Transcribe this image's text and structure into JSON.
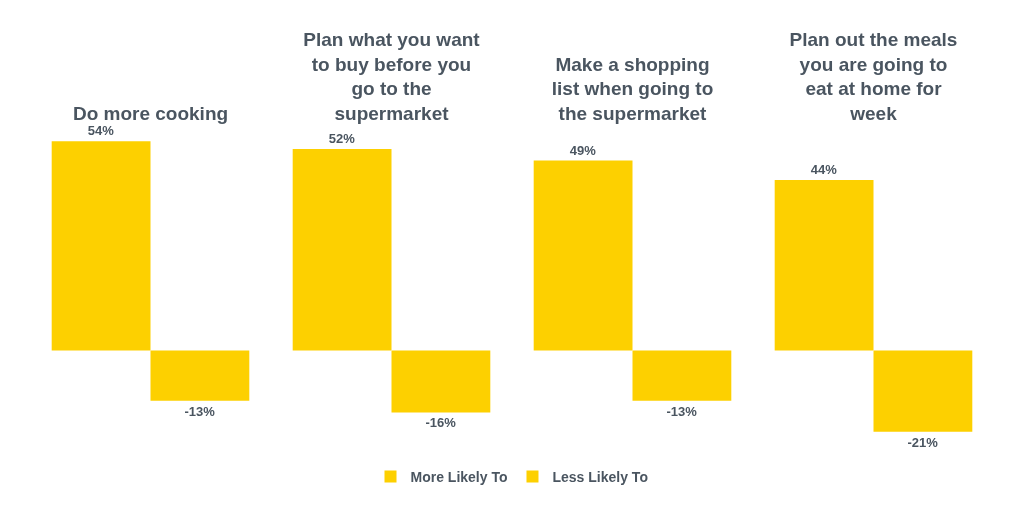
{
  "chart_data": {
    "type": "bar",
    "categories": [
      "Do more cooking",
      "Plan what you want to buy before you go to the supermarket",
      "Make a shopping list when going to the supermarket",
      "Plan out the meals you are going to eat at home for week"
    ],
    "series": [
      {
        "name": "More Likely To",
        "color": "#fdd000",
        "values": [
          54,
          52,
          49,
          44
        ],
        "value_labels": [
          "54%",
          "52%",
          "49%",
          "44%"
        ]
      },
      {
        "name": "Less Likely To",
        "color": "#fdd000",
        "values": [
          -13,
          -16,
          -13,
          -21
        ],
        "value_labels": [
          "-13%",
          "-16%",
          "-13%",
          "-21%"
        ]
      }
    ],
    "legend": "bottom"
  }
}
